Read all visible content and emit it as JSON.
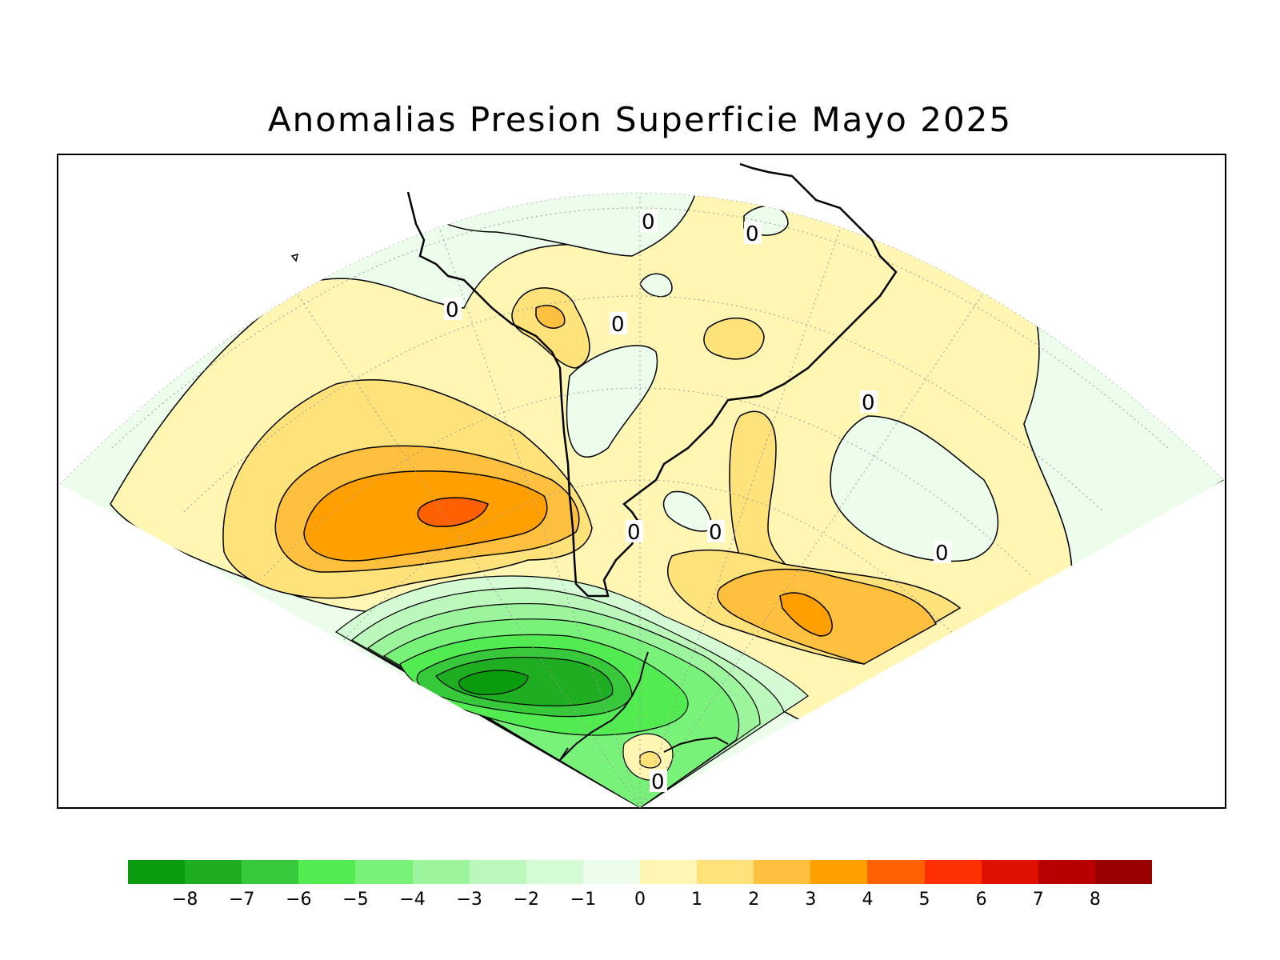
{
  "title": "Anomalias Presion Superficie Mayo 2025",
  "map": {
    "variable": "surface-pressure-anomaly",
    "region": "South America and Antarctic Peninsula",
    "contour_labels": [
      "0",
      "0",
      "0",
      "0",
      "0",
      "0",
      "0",
      "0",
      "0",
      "0"
    ]
  },
  "colorbar": {
    "colors": [
      "#0b9b0f",
      "#1fad22",
      "#38c83b",
      "#52eb52",
      "#79f279",
      "#9cf59c",
      "#bcf8bc",
      "#d5fbd5",
      "#ecfdec",
      "#fff6b3",
      "#ffe27a",
      "#ffbf3f",
      "#ff9f00",
      "#ff6000",
      "#ff3000",
      "#e01000",
      "#b80000",
      "#990000"
    ],
    "tick_labels": [
      "−8",
      "−7",
      "−6",
      "−5",
      "−4",
      "−3",
      "−2",
      "−1",
      "0",
      "1",
      "2",
      "3",
      "4",
      "5",
      "6",
      "7",
      "8"
    ]
  }
}
